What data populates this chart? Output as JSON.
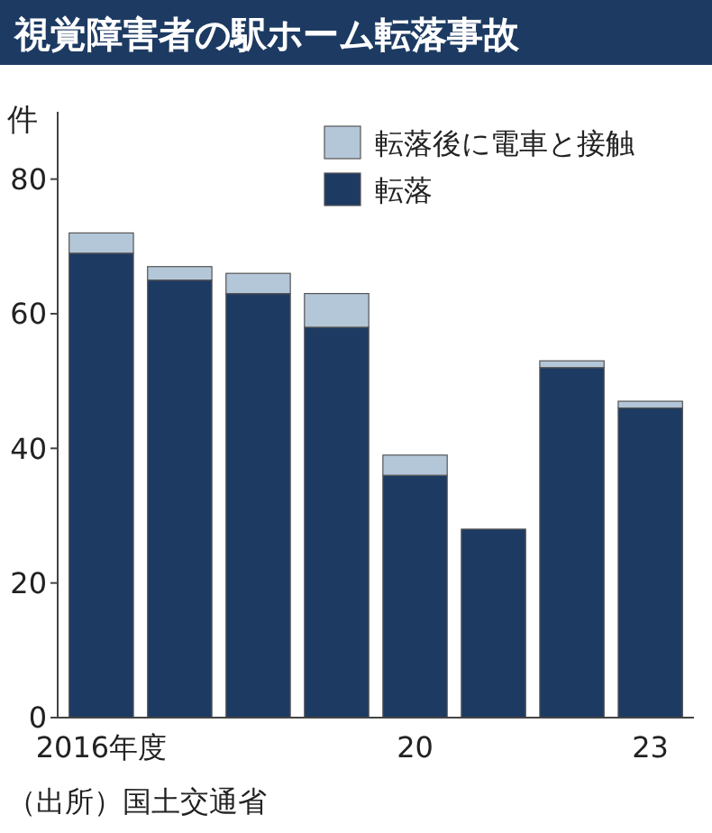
{
  "chart_data": {
    "type": "bar",
    "title": "視覚障害者の駅ホーム転落事故",
    "ylabel": "件",
    "stacked": true,
    "categories": [
      "2016年度",
      null,
      null,
      null,
      "20",
      null,
      null,
      "23"
    ],
    "series": [
      {
        "name": "転落",
        "color": "#1d3a62",
        "values": [
          69,
          65,
          63,
          58,
          36,
          28,
          52,
          46
        ]
      },
      {
        "name": "転落後に電車と接触",
        "color": "#b4c7d9",
        "values": [
          3,
          2,
          3,
          5,
          3,
          0,
          1,
          1
        ]
      }
    ],
    "ylim": [
      0,
      90
    ],
    "yticks": [
      0,
      20,
      40,
      60,
      80
    ],
    "grid": false,
    "legend": "top right",
    "annotations": [
      "（出所）国土交通省"
    ]
  }
}
